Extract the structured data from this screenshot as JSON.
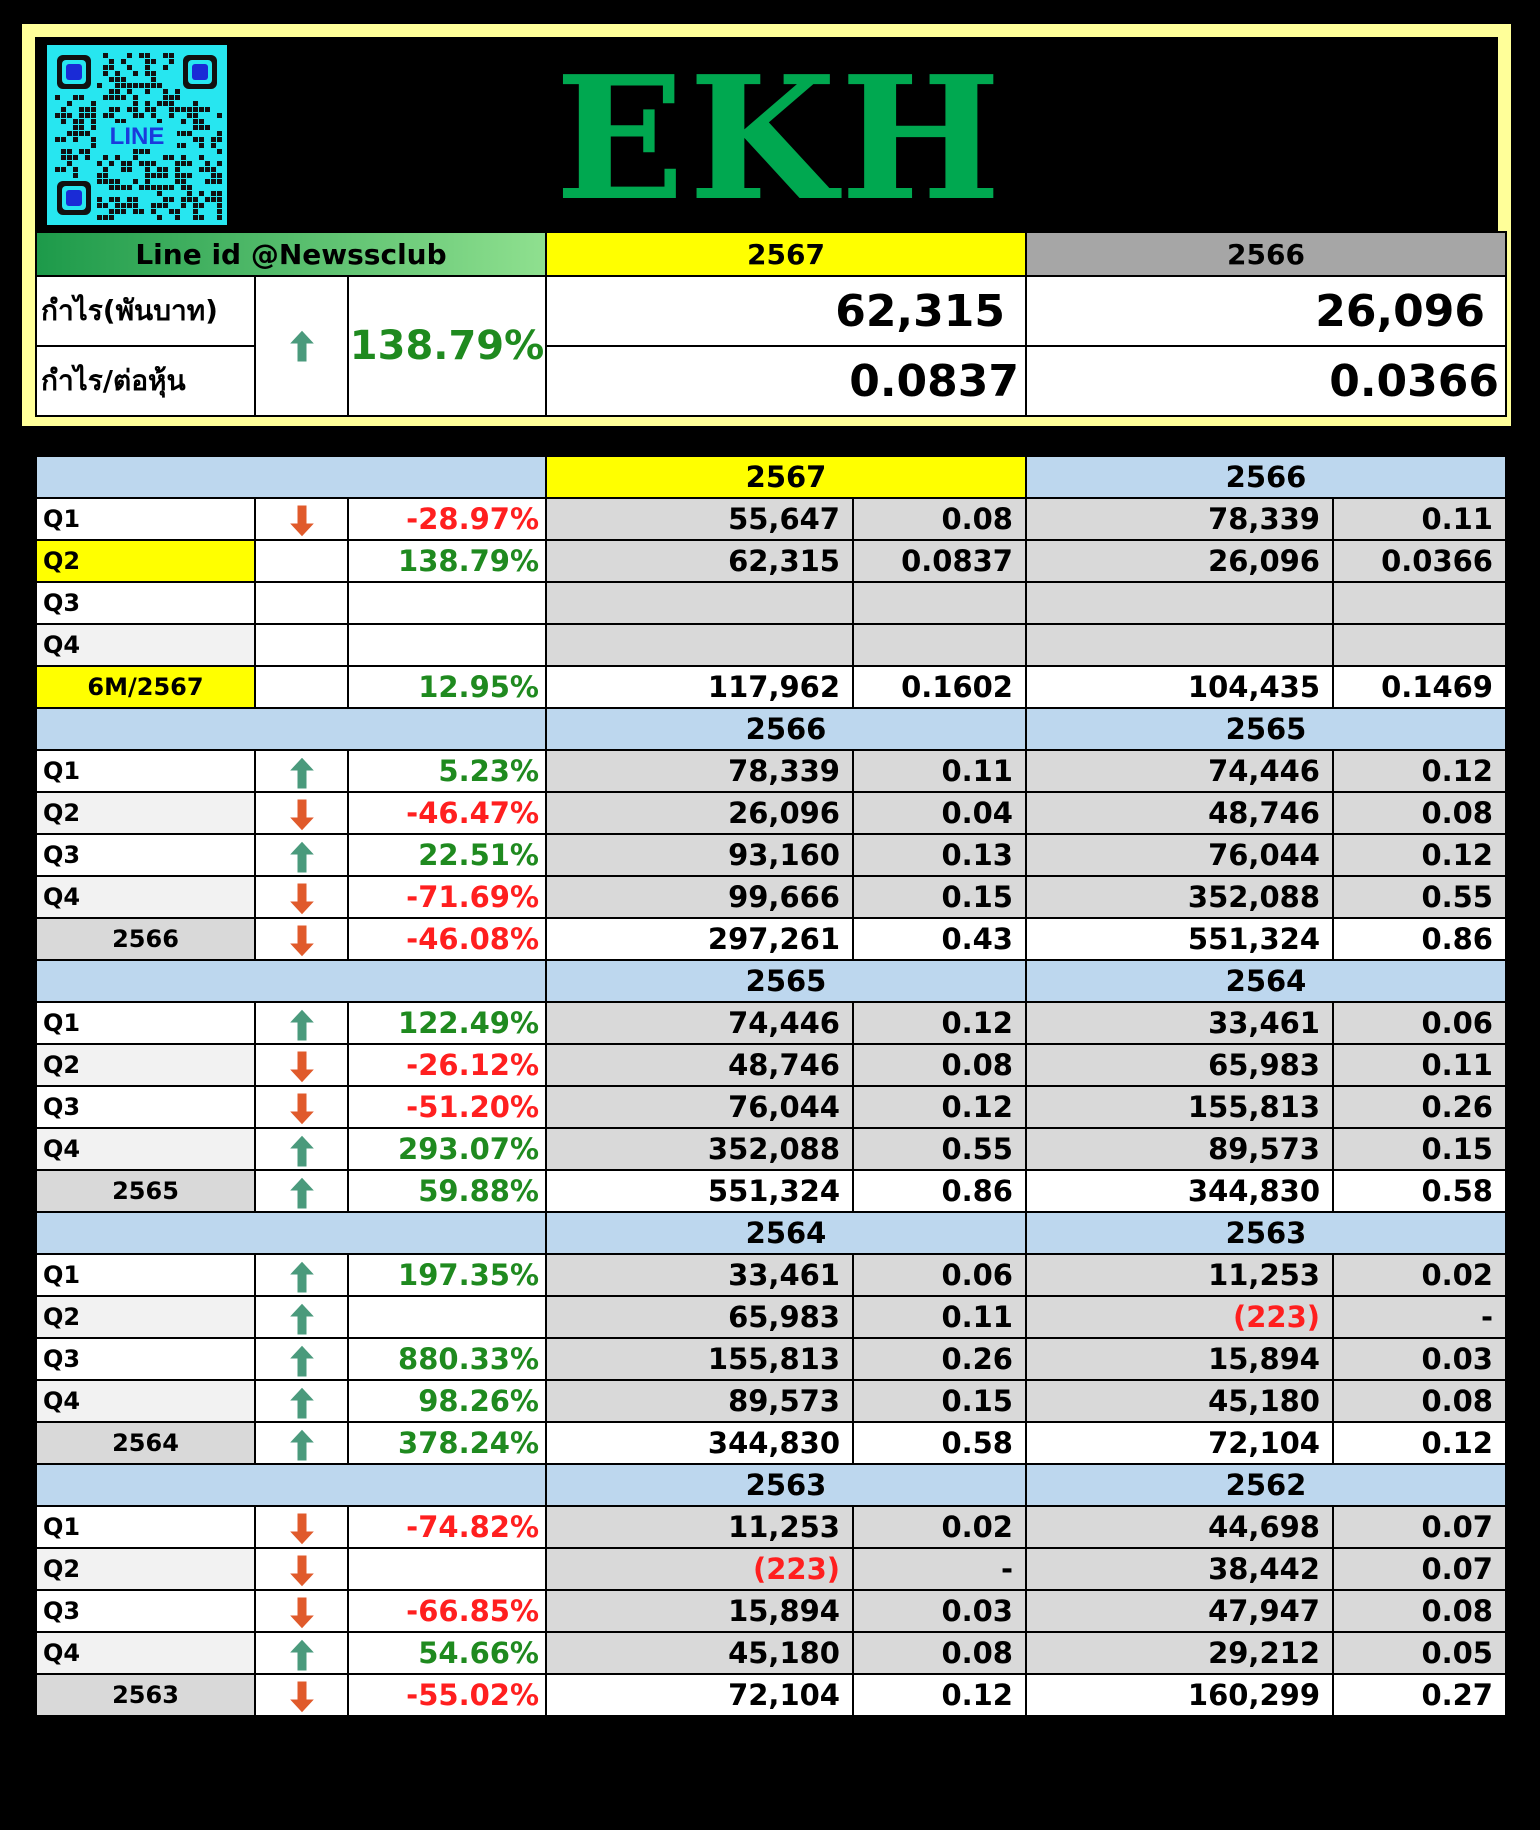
{
  "qr": {
    "label": "LINE"
  },
  "logo": "EKH",
  "header": {
    "line_id": "Line id @Newssclub",
    "year_current": "2567",
    "year_previous": "2566",
    "profit_label": "กำไร(พันบาท)",
    "eps_label": "กำไร/ต่อหุ้น",
    "change": "138.79%",
    "trend": "up",
    "profit_current": "62,315",
    "profit_previous": "26,096",
    "eps_current": "0.0837",
    "eps_previous": "0.0366"
  },
  "sections": [
    {
      "year_a": "2567",
      "year_b": "2566",
      "highlight": true,
      "rows": [
        {
          "label": "Q1",
          "arrow": "down",
          "pct": "-28.97%",
          "a": "55,647",
          "a_eps": "0.08",
          "b": "78,339",
          "b_eps": "0.11",
          "label_style": "w"
        },
        {
          "label": "Q2",
          "arrow": "",
          "pct": "138.79%",
          "a": "62,315",
          "a_eps": "0.0837",
          "b": "26,096",
          "b_eps": "0.0366",
          "label_style": "y"
        },
        {
          "label": "Q3",
          "arrow": "",
          "pct": "",
          "a": "",
          "a_eps": "",
          "b": "",
          "b_eps": "",
          "label_style": "w"
        },
        {
          "label": "Q4",
          "arrow": "",
          "pct": "",
          "a": "",
          "a_eps": "",
          "b": "",
          "b_eps": "",
          "label_style": "lg"
        },
        {
          "label": "6M/2567",
          "arrow": "",
          "pct": "12.95%",
          "a": "117,962",
          "a_eps": "0.1602",
          "b": "104,435",
          "b_eps": "0.1469",
          "label_style": "y",
          "total": true
        }
      ]
    },
    {
      "year_a": "2566",
      "year_b": "2565",
      "rows": [
        {
          "label": "Q1",
          "arrow": "up",
          "pct": "5.23%",
          "a": "78,339",
          "a_eps": "0.11",
          "b": "74,446",
          "b_eps": "0.12"
        },
        {
          "label": "Q2",
          "arrow": "down",
          "pct": "-46.47%",
          "a": "26,096",
          "a_eps": "0.04",
          "b": "48,746",
          "b_eps": "0.08"
        },
        {
          "label": "Q3",
          "arrow": "up",
          "pct": "22.51%",
          "a": "93,160",
          "a_eps": "0.13",
          "b": "76,044",
          "b_eps": "0.12"
        },
        {
          "label": "Q4",
          "arrow": "down",
          "pct": "-71.69%",
          "a": "99,666",
          "a_eps": "0.15",
          "b": "352,088",
          "b_eps": "0.55"
        },
        {
          "label": "2566",
          "arrow": "down",
          "pct": "-46.08%",
          "a": "297,261",
          "a_eps": "0.43",
          "b": "551,324",
          "b_eps": "0.86",
          "total": true
        }
      ]
    },
    {
      "year_a": "2565",
      "year_b": "2564",
      "rows": [
        {
          "label": "Q1",
          "arrow": "up",
          "pct": "122.49%",
          "a": "74,446",
          "a_eps": "0.12",
          "b": "33,461",
          "b_eps": "0.06"
        },
        {
          "label": "Q2",
          "arrow": "down",
          "pct": "-26.12%",
          "a": "48,746",
          "a_eps": "0.08",
          "b": "65,983",
          "b_eps": "0.11"
        },
        {
          "label": "Q3",
          "arrow": "down",
          "pct": "-51.20%",
          "a": "76,044",
          "a_eps": "0.12",
          "b": "155,813",
          "b_eps": "0.26"
        },
        {
          "label": "Q4",
          "arrow": "up",
          "pct": "293.07%",
          "a": "352,088",
          "a_eps": "0.55",
          "b": "89,573",
          "b_eps": "0.15"
        },
        {
          "label": "2565",
          "arrow": "up",
          "pct": "59.88%",
          "a": "551,324",
          "a_eps": "0.86",
          "b": "344,830",
          "b_eps": "0.58",
          "total": true
        }
      ]
    },
    {
      "year_a": "2564",
      "year_b": "2563",
      "rows": [
        {
          "label": "Q1",
          "arrow": "up",
          "pct": "197.35%",
          "a": "33,461",
          "a_eps": "0.06",
          "b": "11,253",
          "b_eps": "0.02"
        },
        {
          "label": "Q2",
          "arrow": "up",
          "pct": "",
          "a": "65,983",
          "a_eps": "0.11",
          "b": "(223)",
          "b_eps": "-",
          "b_neg": true
        },
        {
          "label": "Q3",
          "arrow": "up",
          "pct": "880.33%",
          "a": "155,813",
          "a_eps": "0.26",
          "b": "15,894",
          "b_eps": "0.03"
        },
        {
          "label": "Q4",
          "arrow": "up",
          "pct": "98.26%",
          "a": "89,573",
          "a_eps": "0.15",
          "b": "45,180",
          "b_eps": "0.08"
        },
        {
          "label": "2564",
          "arrow": "up",
          "pct": "378.24%",
          "a": "344,830",
          "a_eps": "0.58",
          "b": "72,104",
          "b_eps": "0.12",
          "total": true
        }
      ]
    },
    {
      "year_a": "2563",
      "year_b": "2562",
      "rows": [
        {
          "label": "Q1",
          "arrow": "down",
          "pct": "-74.82%",
          "a": "11,253",
          "a_eps": "0.02",
          "b": "44,698",
          "b_eps": "0.07"
        },
        {
          "label": "Q2",
          "arrow": "down",
          "pct": "",
          "a": "(223)",
          "a_eps": "-",
          "b": "38,442",
          "b_eps": "0.07",
          "a_neg": true
        },
        {
          "label": "Q3",
          "arrow": "down",
          "pct": "-66.85%",
          "a": "15,894",
          "a_eps": "0.03",
          "b": "47,947",
          "b_eps": "0.08"
        },
        {
          "label": "Q4",
          "arrow": "up",
          "pct": "54.66%",
          "a": "45,180",
          "a_eps": "0.08",
          "b": "29,212",
          "b_eps": "0.05"
        },
        {
          "label": "2563",
          "arrow": "down",
          "pct": "-55.02%",
          "a": "72,104",
          "a_eps": "0.12",
          "b": "160,299",
          "b_eps": "0.27",
          "total": true
        }
      ]
    }
  ],
  "colors": {
    "up": "#4a9a7c",
    "down": "#e05a2b",
    "positive": "#1f8a1f",
    "negative": "#ff1f1f",
    "logo": "#00a850"
  }
}
